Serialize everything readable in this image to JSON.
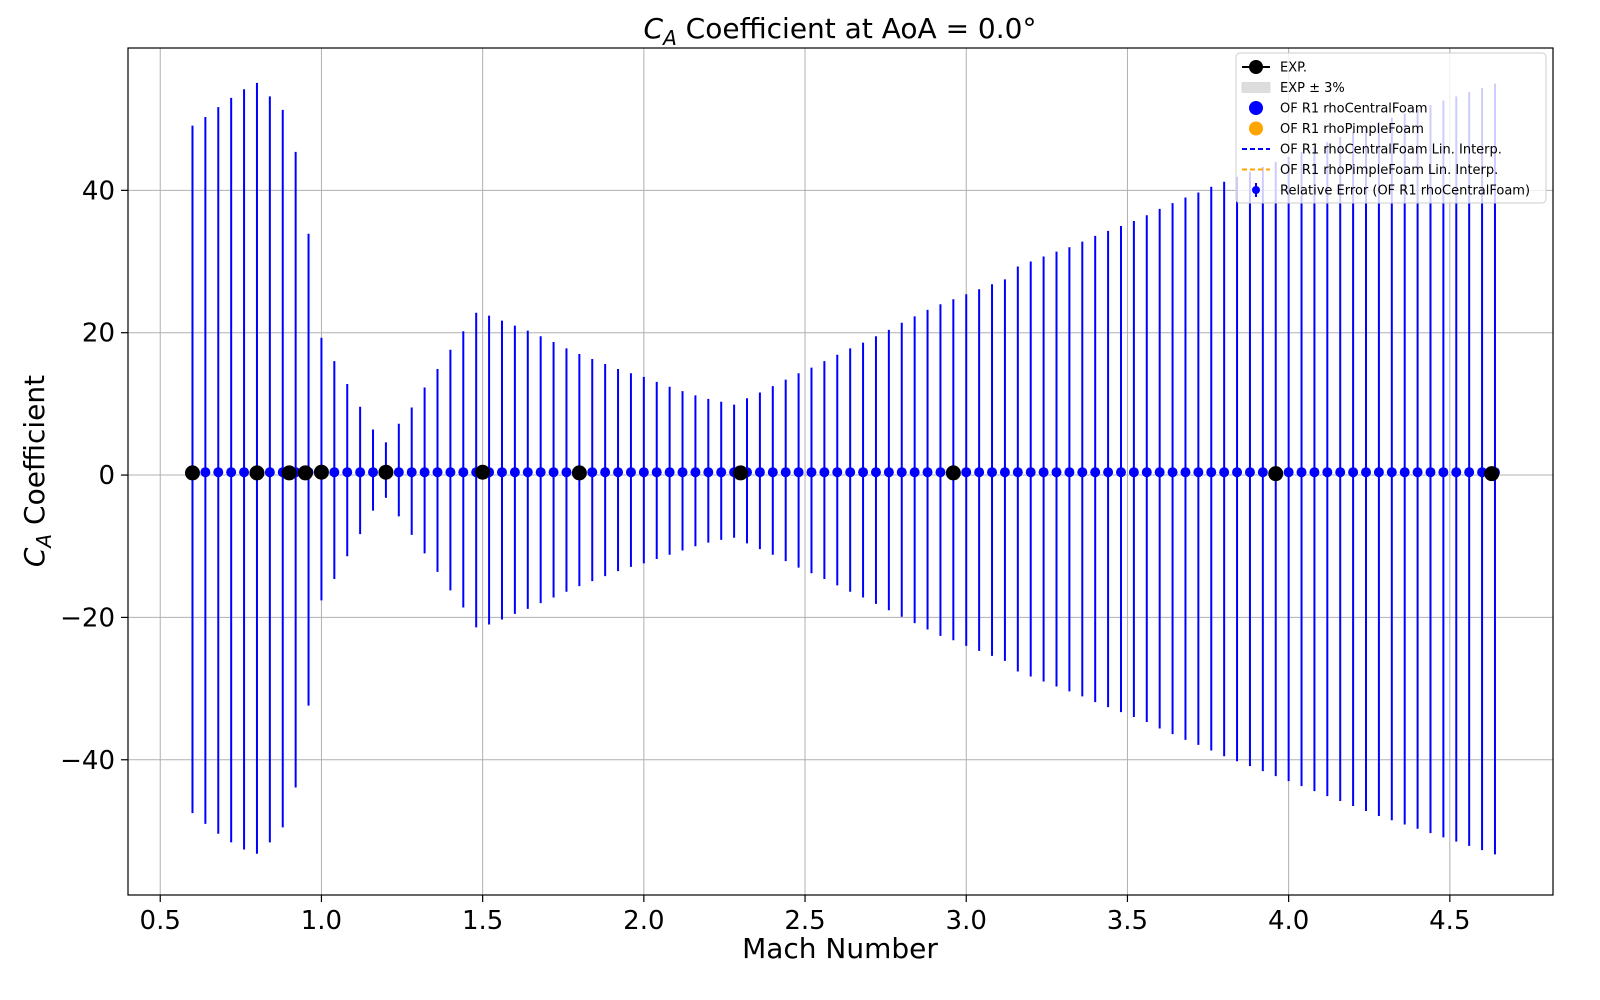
{
  "chart_data": {
    "type": "scatter",
    "title_main": "C",
    "title_sub": "A",
    "title_rest": " Coefficient at AoA = 0.0°",
    "xlabel": "Mach Number",
    "ylabel_main": "C",
    "ylabel_sub": "A",
    "ylabel_rest": " Coefficient",
    "xlim": [
      0.4,
      4.82
    ],
    "ylim": [
      -59,
      60
    ],
    "grid": true,
    "legend_position": "top-right",
    "xticks": [
      0.5,
      1.0,
      1.5,
      2.0,
      2.5,
      3.0,
      3.5,
      4.0,
      4.5
    ],
    "xtick_labels": [
      "0.5",
      "1.0",
      "1.5",
      "2.0",
      "2.5",
      "3.0",
      "3.5",
      "4.0",
      "4.5"
    ],
    "yticks": [
      -40,
      -20,
      0,
      20,
      40
    ],
    "ytick_labels": [
      "−40",
      "−20",
      "0",
      "20",
      "40"
    ],
    "legend": [
      {
        "label": "EXP.",
        "marker": "line-dot",
        "color": "#000000"
      },
      {
        "label": "EXP ± 3%",
        "marker": "band",
        "color": "#dddddd"
      },
      {
        "label": "OF R1 rhoCentralFoam",
        "marker": "dot",
        "color": "#0000ff"
      },
      {
        "label": "OF R1 rhoPimpleFoam",
        "marker": "dot",
        "color": "#ffa500"
      },
      {
        "label": "OF R1 rhoCentralFoam Lin. Interp.",
        "marker": "dash",
        "color": "#0000ff"
      },
      {
        "label": "OF R1 rhoPimpleFoam Lin. Interp.",
        "marker": "dash",
        "color": "#ffa500"
      },
      {
        "label": "Relative Error (OF R1 rhoCentralFoam)",
        "marker": "errorbar",
        "color": "#0000ff"
      }
    ],
    "series": [
      {
        "name": "EXP.",
        "color": "#000000",
        "x": [
          0.6,
          0.8,
          0.9,
          0.95,
          1.0,
          1.2,
          1.5,
          1.8,
          2.3,
          2.96,
          3.96,
          4.63
        ],
        "y": [
          0.3,
          0.3,
          0.3,
          0.3,
          0.4,
          0.4,
          0.4,
          0.3,
          0.3,
          0.3,
          0.2,
          0.2
        ]
      },
      {
        "name": "Relative Error (OF R1 rhoCentralFoam)",
        "color": "#0000ff",
        "x_start": 0.6,
        "x_step": 0.04,
        "y": [
          0.4,
          0.4,
          0.4,
          0.4,
          0.4,
          0.4,
          0.4,
          0.4,
          0.4,
          0.4,
          0.4,
          0.4,
          0.4,
          0.4,
          0.4,
          0.4,
          0.4,
          0.4,
          0.4,
          0.4,
          0.4,
          0.4,
          0.4,
          0.4,
          0.4,
          0.4,
          0.4,
          0.4,
          0.4,
          0.4,
          0.4,
          0.4,
          0.4,
          0.4,
          0.4,
          0.4,
          0.4,
          0.4,
          0.4,
          0.4,
          0.4,
          0.4,
          0.4,
          0.4,
          0.4,
          0.4,
          0.4,
          0.4,
          0.4,
          0.4,
          0.4,
          0.4,
          0.4,
          0.4,
          0.4,
          0.4,
          0.4,
          0.4,
          0.4,
          0.4,
          0.4,
          0.4,
          0.4,
          0.4,
          0.4,
          0.4,
          0.4,
          0.4,
          0.4,
          0.4,
          0.4,
          0.4,
          0.4,
          0.4,
          0.4,
          0.4,
          0.4,
          0.4,
          0.4,
          0.4,
          0.4,
          0.4,
          0.4,
          0.4,
          0.4,
          0.4,
          0.4,
          0.4,
          0.4,
          0.4,
          0.4,
          0.4,
          0.4,
          0.4,
          0.4,
          0.4,
          0.4,
          0.4,
          0.4,
          0.4,
          0.4,
          0.4
        ],
        "err_upper": [
          48.7,
          49.9,
          51.3,
          52.6,
          53.8,
          54.7,
          52.8,
          50.9,
          45.0,
          33.5,
          18.9,
          15.6,
          12.4,
          9.2,
          6.0,
          4.2,
          6.8,
          9.1,
          11.9,
          14.5,
          17.2,
          19.8,
          22.4,
          22.0,
          21.3,
          20.6,
          19.9,
          19.1,
          18.3,
          17.4,
          16.6,
          15.9,
          15.2,
          14.5,
          13.9,
          13.4,
          12.7,
          12.0,
          11.4,
          10.8,
          10.3,
          9.9,
          9.5,
          10.4,
          11.2,
          12.1,
          13.0,
          13.9,
          14.7,
          15.6,
          16.5,
          17.4,
          18.2,
          19.1,
          20.0,
          21.0,
          21.9,
          22.8,
          23.6,
          24.3,
          25.0,
          25.7,
          26.4,
          27.1,
          28.9,
          29.6,
          30.3,
          31.0,
          31.6,
          32.4,
          33.2,
          33.9,
          34.6,
          35.3,
          36.1,
          37.0,
          37.8,
          38.6,
          39.3,
          40.1,
          40.8,
          41.5,
          42.2,
          42.9,
          43.6,
          44.3,
          45.0,
          45.7,
          46.4,
          47.1,
          47.8,
          48.5,
          49.2,
          49.8,
          50.4,
          51.0,
          51.6,
          52.2,
          52.8,
          53.4,
          54.0,
          54.6
        ],
        "err_lower": [
          47.9,
          49.4,
          50.8,
          52.0,
          53.0,
          53.6,
          52.0,
          49.9,
          44.3,
          32.8,
          18.0,
          15.0,
          11.8,
          8.7,
          5.4,
          3.6,
          6.2,
          8.8,
          11.4,
          14.0,
          16.6,
          19.0,
          21.8,
          21.4,
          20.7,
          19.9,
          19.2,
          18.4,
          17.6,
          16.8,
          16.0,
          15.3,
          14.6,
          13.9,
          13.3,
          12.8,
          12.2,
          11.6,
          11.0,
          10.4,
          9.9,
          9.5,
          9.2,
          10.0,
          10.8,
          11.6,
          12.5,
          13.4,
          14.2,
          15.0,
          15.9,
          16.8,
          17.6,
          18.5,
          19.4,
          20.3,
          21.2,
          22.1,
          23.0,
          23.6,
          24.4,
          25.1,
          25.8,
          26.5,
          28.0,
          28.7,
          29.4,
          30.1,
          30.8,
          31.5,
          32.3,
          33.0,
          33.7,
          34.4,
          35.1,
          36.0,
          36.8,
          37.6,
          38.3,
          39.1,
          39.9,
          40.6,
          41.3,
          42.0,
          42.7,
          43.4,
          44.1,
          44.8,
          45.5,
          46.2,
          46.9,
          47.6,
          48.3,
          48.9,
          49.5,
          50.1,
          50.7,
          51.3,
          51.9,
          52.5,
          53.1,
          53.7
        ]
      }
    ]
  }
}
